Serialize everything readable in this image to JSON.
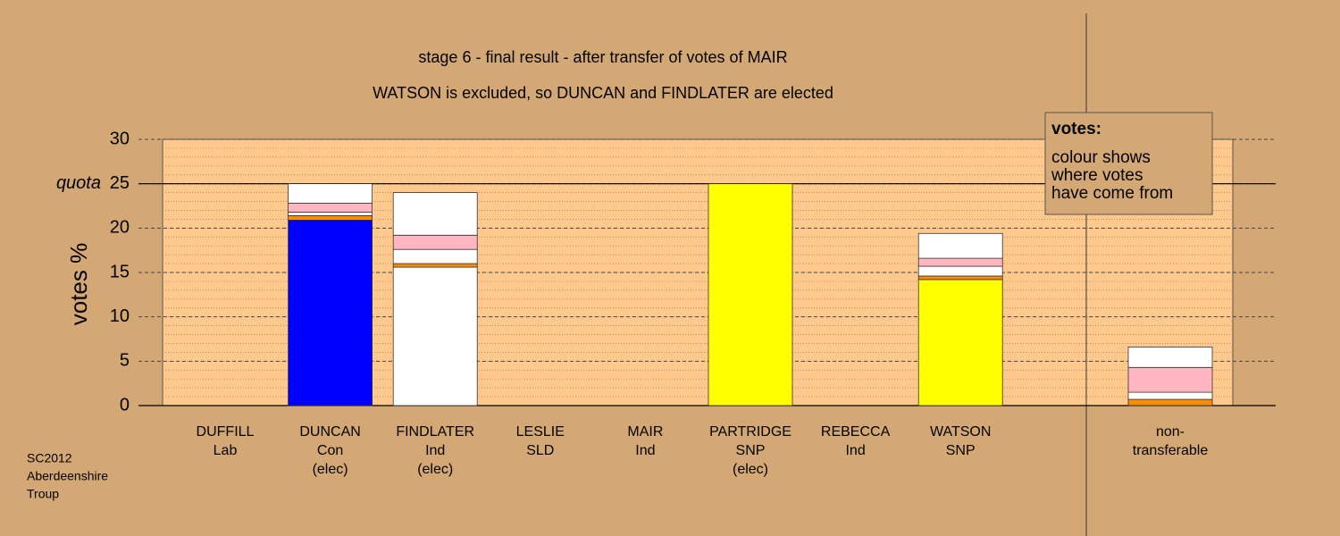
{
  "chart_data": {
    "type": "stacked_bar",
    "title": "stage 6 - final result - after transfer of votes of MAIR",
    "subtitle": "WATSON is excluded, so DUNCAN and FINDLATER are elected",
    "y_label": "votes %",
    "categories": [
      [
        "DUFFILL",
        "Lab"
      ],
      [
        "DUNCAN",
        "Con",
        "(elec)"
      ],
      [
        "FINDLATER",
        "Ind",
        "(elec)"
      ],
      [
        "LESLIE",
        "SLD"
      ],
      [
        "MAIR",
        "Ind"
      ],
      [
        "PARTRIDGE",
        "SNP",
        "(elec)"
      ],
      [
        "REBECCA",
        "Ind"
      ],
      [
        "WATSON",
        "SNP"
      ],
      [
        "non-",
        "transferable"
      ]
    ],
    "series": [
      {
        "color": "#0000ff",
        "values": [
          0,
          20.9,
          0,
          0,
          0,
          0,
          0,
          0,
          0
        ]
      },
      {
        "color": "#ffffff",
        "values": [
          0,
          0,
          15.6,
          0,
          0,
          0,
          0,
          0,
          0
        ]
      },
      {
        "color": "#ffff00",
        "values": [
          0,
          0,
          0,
          0,
          0,
          25,
          0,
          14.2,
          0
        ]
      },
      {
        "color": "#ff8c00",
        "values": [
          0,
          0.5,
          0.4,
          0,
          0,
          0,
          0,
          0.4,
          0.7
        ]
      },
      {
        "color": "#ffffff",
        "values": [
          0,
          0.4,
          1.6,
          0,
          0,
          0,
          0,
          1.1,
          0.8
        ]
      },
      {
        "color": "#ffb6c1",
        "values": [
          0,
          1.0,
          1.6,
          0,
          0,
          0,
          0,
          0.9,
          2.8
        ]
      },
      {
        "color": "#ffffff",
        "values": [
          0,
          2.2,
          4.8,
          0,
          0,
          0,
          0,
          2.8,
          2.3
        ]
      }
    ],
    "ylim": [
      0,
      30
    ],
    "yticks": [
      0,
      5,
      10,
      15,
      20,
      25,
      30
    ],
    "yminor": 1,
    "grid": true,
    "quota": {
      "label": "quota",
      "value": 25
    },
    "note": {
      "title": "votes:",
      "lines": [
        "colour shows",
        "where votes",
        "have come from"
      ]
    },
    "footer": [
      "SC2012",
      "Aberdeenshire",
      "Troup"
    ]
  }
}
